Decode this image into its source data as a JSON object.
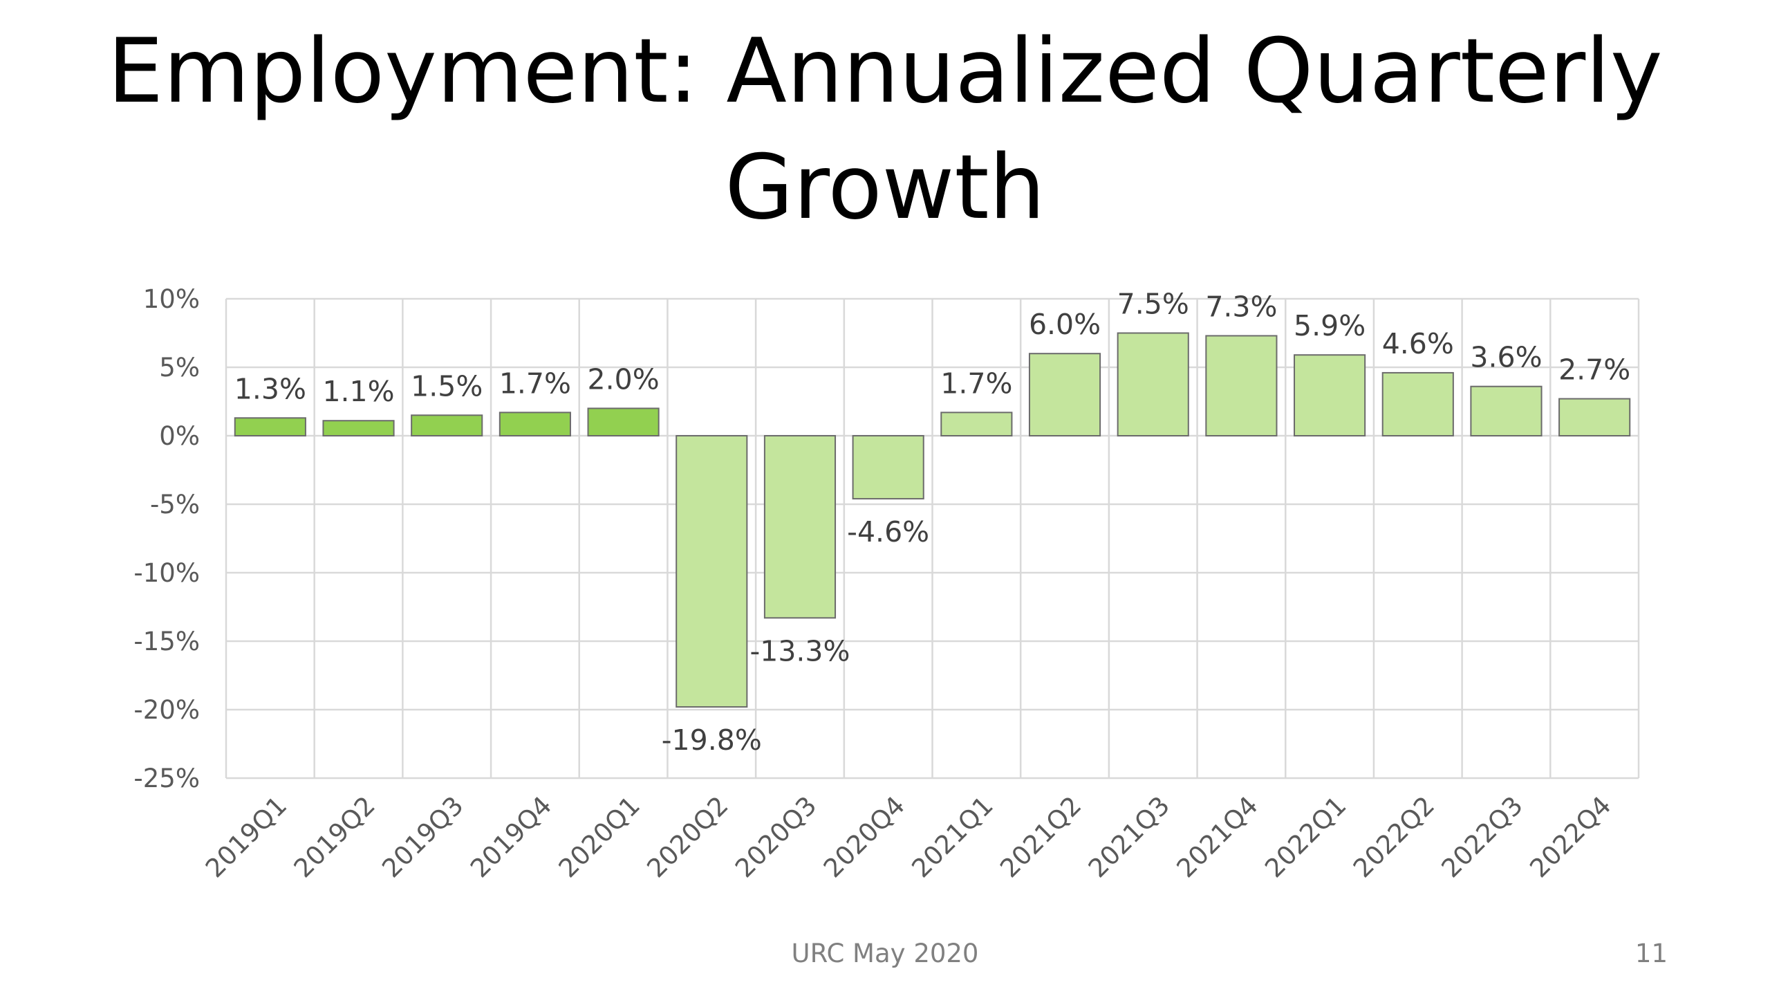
{
  "title": {
    "line1": "Employment: Annualized Quarterly",
    "line2": "Growth"
  },
  "chart_data": {
    "type": "bar",
    "title": "Employment: Annualized Quarterly Growth",
    "xlabel": "",
    "ylabel": "",
    "categories": [
      "2019Q1",
      "2019Q2",
      "2019Q3",
      "2019Q4",
      "2020Q1",
      "2020Q2",
      "2020Q3",
      "2020Q4",
      "2021Q1",
      "2021Q2",
      "2021Q3",
      "2021Q4",
      "2022Q1",
      "2022Q2",
      "2022Q3",
      "2022Q4"
    ],
    "values": [
      1.3,
      1.1,
      1.5,
      1.7,
      2.0,
      -19.8,
      -13.3,
      -4.6,
      1.7,
      6.0,
      7.5,
      7.3,
      5.9,
      4.6,
      3.6,
      2.7
    ],
    "data_labels": [
      "1.3%",
      "1.1%",
      "1.5%",
      "1.7%",
      "2.0%",
      "-19.8%",
      "-13.3%",
      "-4.6%",
      "1.7%",
      "6.0%",
      "7.5%",
      "7.3%",
      "5.9%",
      "4.6%",
      "3.6%",
      "2.7%"
    ],
    "ylim": [
      -25,
      10
    ],
    "yticks": [
      10,
      5,
      0,
      -5,
      -10,
      -15,
      -20,
      -25
    ],
    "ytick_labels": [
      "10%",
      "5%",
      "0%",
      "-5%",
      "-10%",
      "-15%",
      "-20%",
      "-25%"
    ],
    "grid": true,
    "legend": "none",
    "colors": {
      "historical": "#92d050",
      "forecast": "#c4e59d",
      "bar_edge": "#6b6b6b",
      "grid": "#d9d9d9",
      "tick_text": "#595959",
      "label_text": "#404040"
    },
    "historical_count": 5
  },
  "footer": {
    "source": "URC May 2020",
    "page_number": "11"
  }
}
